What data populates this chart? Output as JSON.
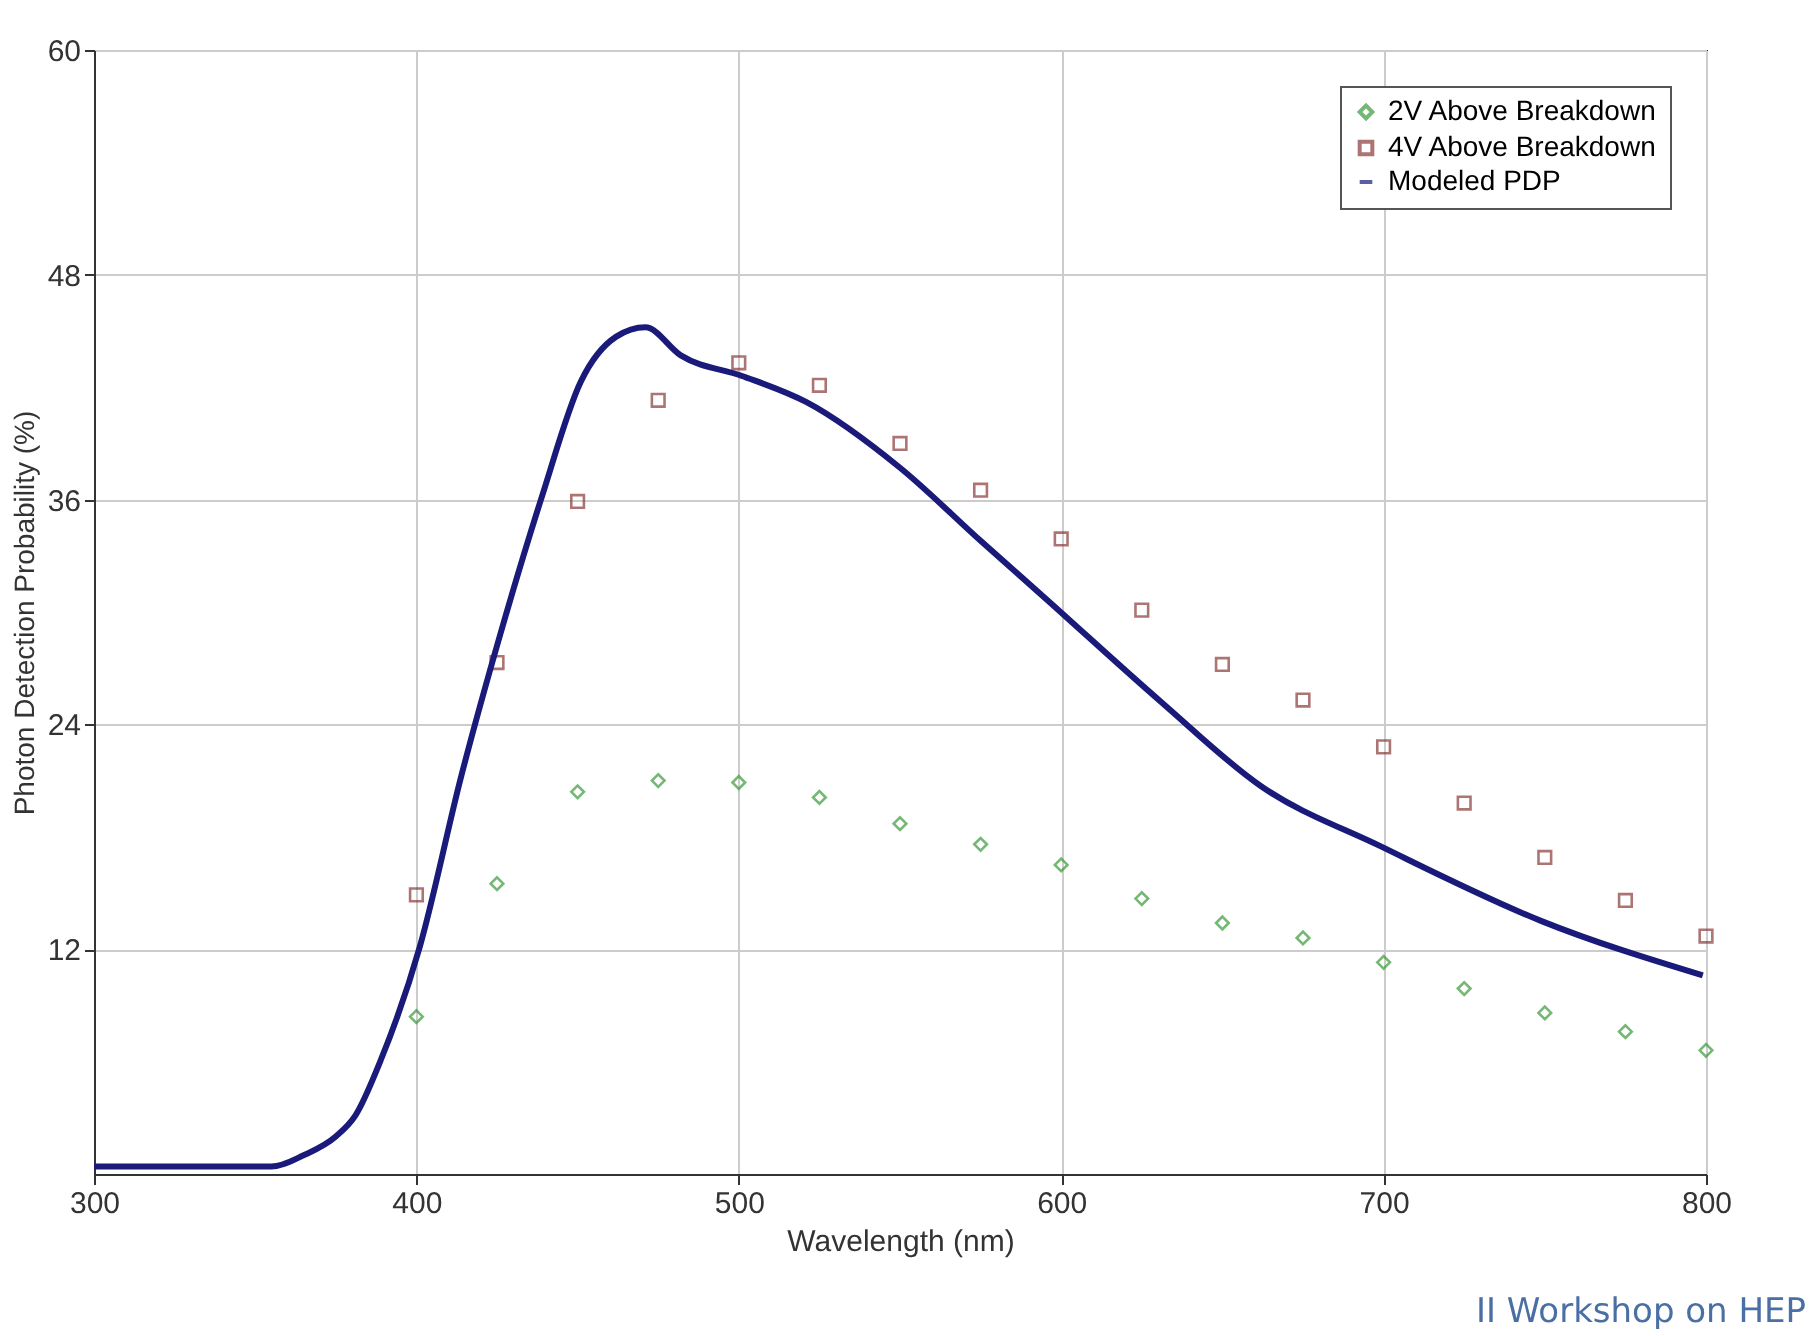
{
  "chart_data": {
    "type": "scatter",
    "xlabel": "Wavelength (nm)",
    "ylabel": "Photon Detection Probability (%)",
    "xlim": [
      300,
      800
    ],
    "ylim": [
      0,
      60
    ],
    "xticks": [
      300,
      400,
      500,
      600,
      700,
      800
    ],
    "yticks": [
      12,
      24,
      36,
      48,
      60
    ],
    "grid": true,
    "legend": "top right",
    "annotations": [
      "II Workshop on HEP"
    ],
    "series": [
      {
        "name": "2V Above Breakdown",
        "marker": "diamond",
        "color": "#3c9a3c",
        "x": [
          400,
          425,
          450,
          475,
          500,
          525,
          550,
          575,
          600,
          625,
          650,
          675,
          700,
          725,
          750,
          775,
          800
        ],
        "values": [
          8.4,
          15.5,
          20.4,
          21.0,
          20.9,
          20.1,
          18.7,
          17.6,
          16.5,
          14.7,
          13.4,
          12.6,
          11.3,
          9.9,
          8.6,
          7.6,
          6.6
        ]
      },
      {
        "name": "4V Above Breakdown",
        "marker": "square",
        "color": "#8b3a3a",
        "x": [
          400,
          425,
          450,
          475,
          500,
          525,
          550,
          575,
          600,
          625,
          650,
          675,
          700,
          725,
          750,
          775,
          800
        ],
        "values": [
          14.9,
          27.3,
          35.9,
          41.3,
          43.3,
          42.1,
          39.0,
          36.5,
          33.9,
          30.1,
          27.2,
          25.3,
          22.8,
          19.8,
          16.9,
          14.6,
          12.7
        ]
      },
      {
        "name": "Modeled PDP",
        "type": "line",
        "marker": "none",
        "color": "#1a1a7a",
        "x": [
          300,
          350,
          355,
          365,
          375,
          381,
          389,
          401,
          414,
          426,
          439,
          451,
          462,
          471,
          482,
          501,
          521,
          550,
          575,
          594,
          631,
          662,
          699,
          749,
          799
        ],
        "values": [
          0.4,
          0.4,
          0.4,
          1.0,
          2.0,
          3.1,
          6.1,
          12.1,
          21.3,
          28.8,
          36.2,
          42.3,
          44.7,
          45.2,
          43.7,
          42.6,
          41.2,
          37.7,
          33.8,
          30.9,
          25.2,
          20.7,
          17.5,
          13.5,
          10.6
        ]
      }
    ]
  }
}
